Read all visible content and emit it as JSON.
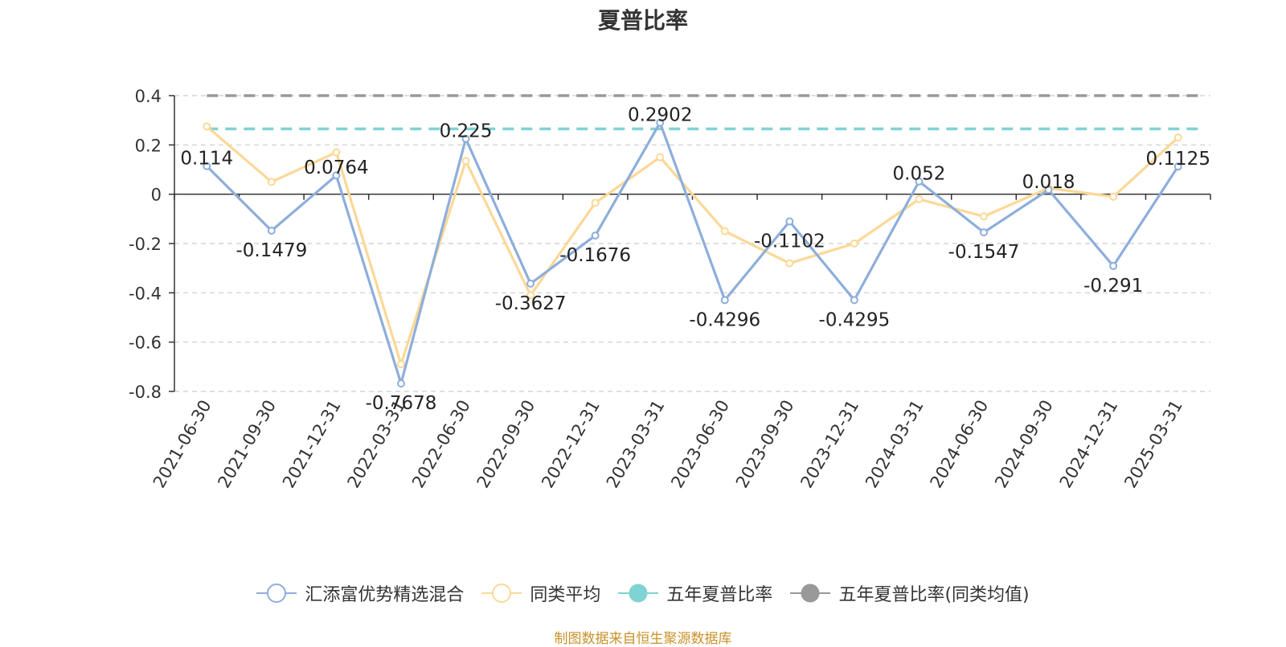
{
  "chart_data": {
    "type": "line",
    "title": "夏普比率",
    "categories": [
      "2021-06-30",
      "2021-09-30",
      "2021-12-31",
      "2022-03-31",
      "2022-06-30",
      "2022-09-30",
      "2022-12-31",
      "2023-03-31",
      "2023-06-30",
      "2023-09-30",
      "2023-12-31",
      "2024-03-31",
      "2024-06-30",
      "2024-09-30",
      "2024-12-31",
      "2025-03-31"
    ],
    "ylim": [
      -0.8,
      0.4
    ],
    "yticks": [
      "0.4",
      "0.2",
      "0",
      "-0.2",
      "-0.4",
      "-0.6",
      "-0.8"
    ],
    "grid": true,
    "legend_position": "bottom",
    "series": [
      {
        "name": "汇添富优势精选混合",
        "color": "#8eaedb",
        "values": [
          0.114,
          -0.1479,
          0.0764,
          -0.7678,
          0.225,
          -0.3627,
          -0.1676,
          0.2902,
          -0.4296,
          -0.1102,
          -0.4295,
          0.052,
          -0.1547,
          0.018,
          -0.291,
          0.1125
        ],
        "labels": [
          "0.114",
          "-0.1479",
          "0.0764",
          "-0.7678",
          "0.225",
          "-0.3627",
          "-0.1676",
          "0.2902",
          "-0.4296",
          "-0.1102",
          "-0.4295",
          "0.052",
          "-0.1547",
          "0.018",
          "-0.291",
          "0.1125"
        ]
      },
      {
        "name": "同类平均",
        "color": "#fcd897",
        "values": [
          0.275,
          0.05,
          0.17,
          -0.69,
          0.135,
          -0.41,
          -0.035,
          0.15,
          -0.15,
          -0.28,
          -0.2,
          -0.02,
          -0.09,
          0.025,
          -0.01,
          0.23
        ]
      },
      {
        "name": "五年夏普比率",
        "color": "#7fd3d3",
        "type": "reference",
        "value": 0.265
      },
      {
        "name": "五年夏普比率(同类均值)",
        "color": "#999999",
        "type": "reference",
        "value": 0.4
      }
    ]
  },
  "source_note": "制图数据来自恒生聚源数据库"
}
